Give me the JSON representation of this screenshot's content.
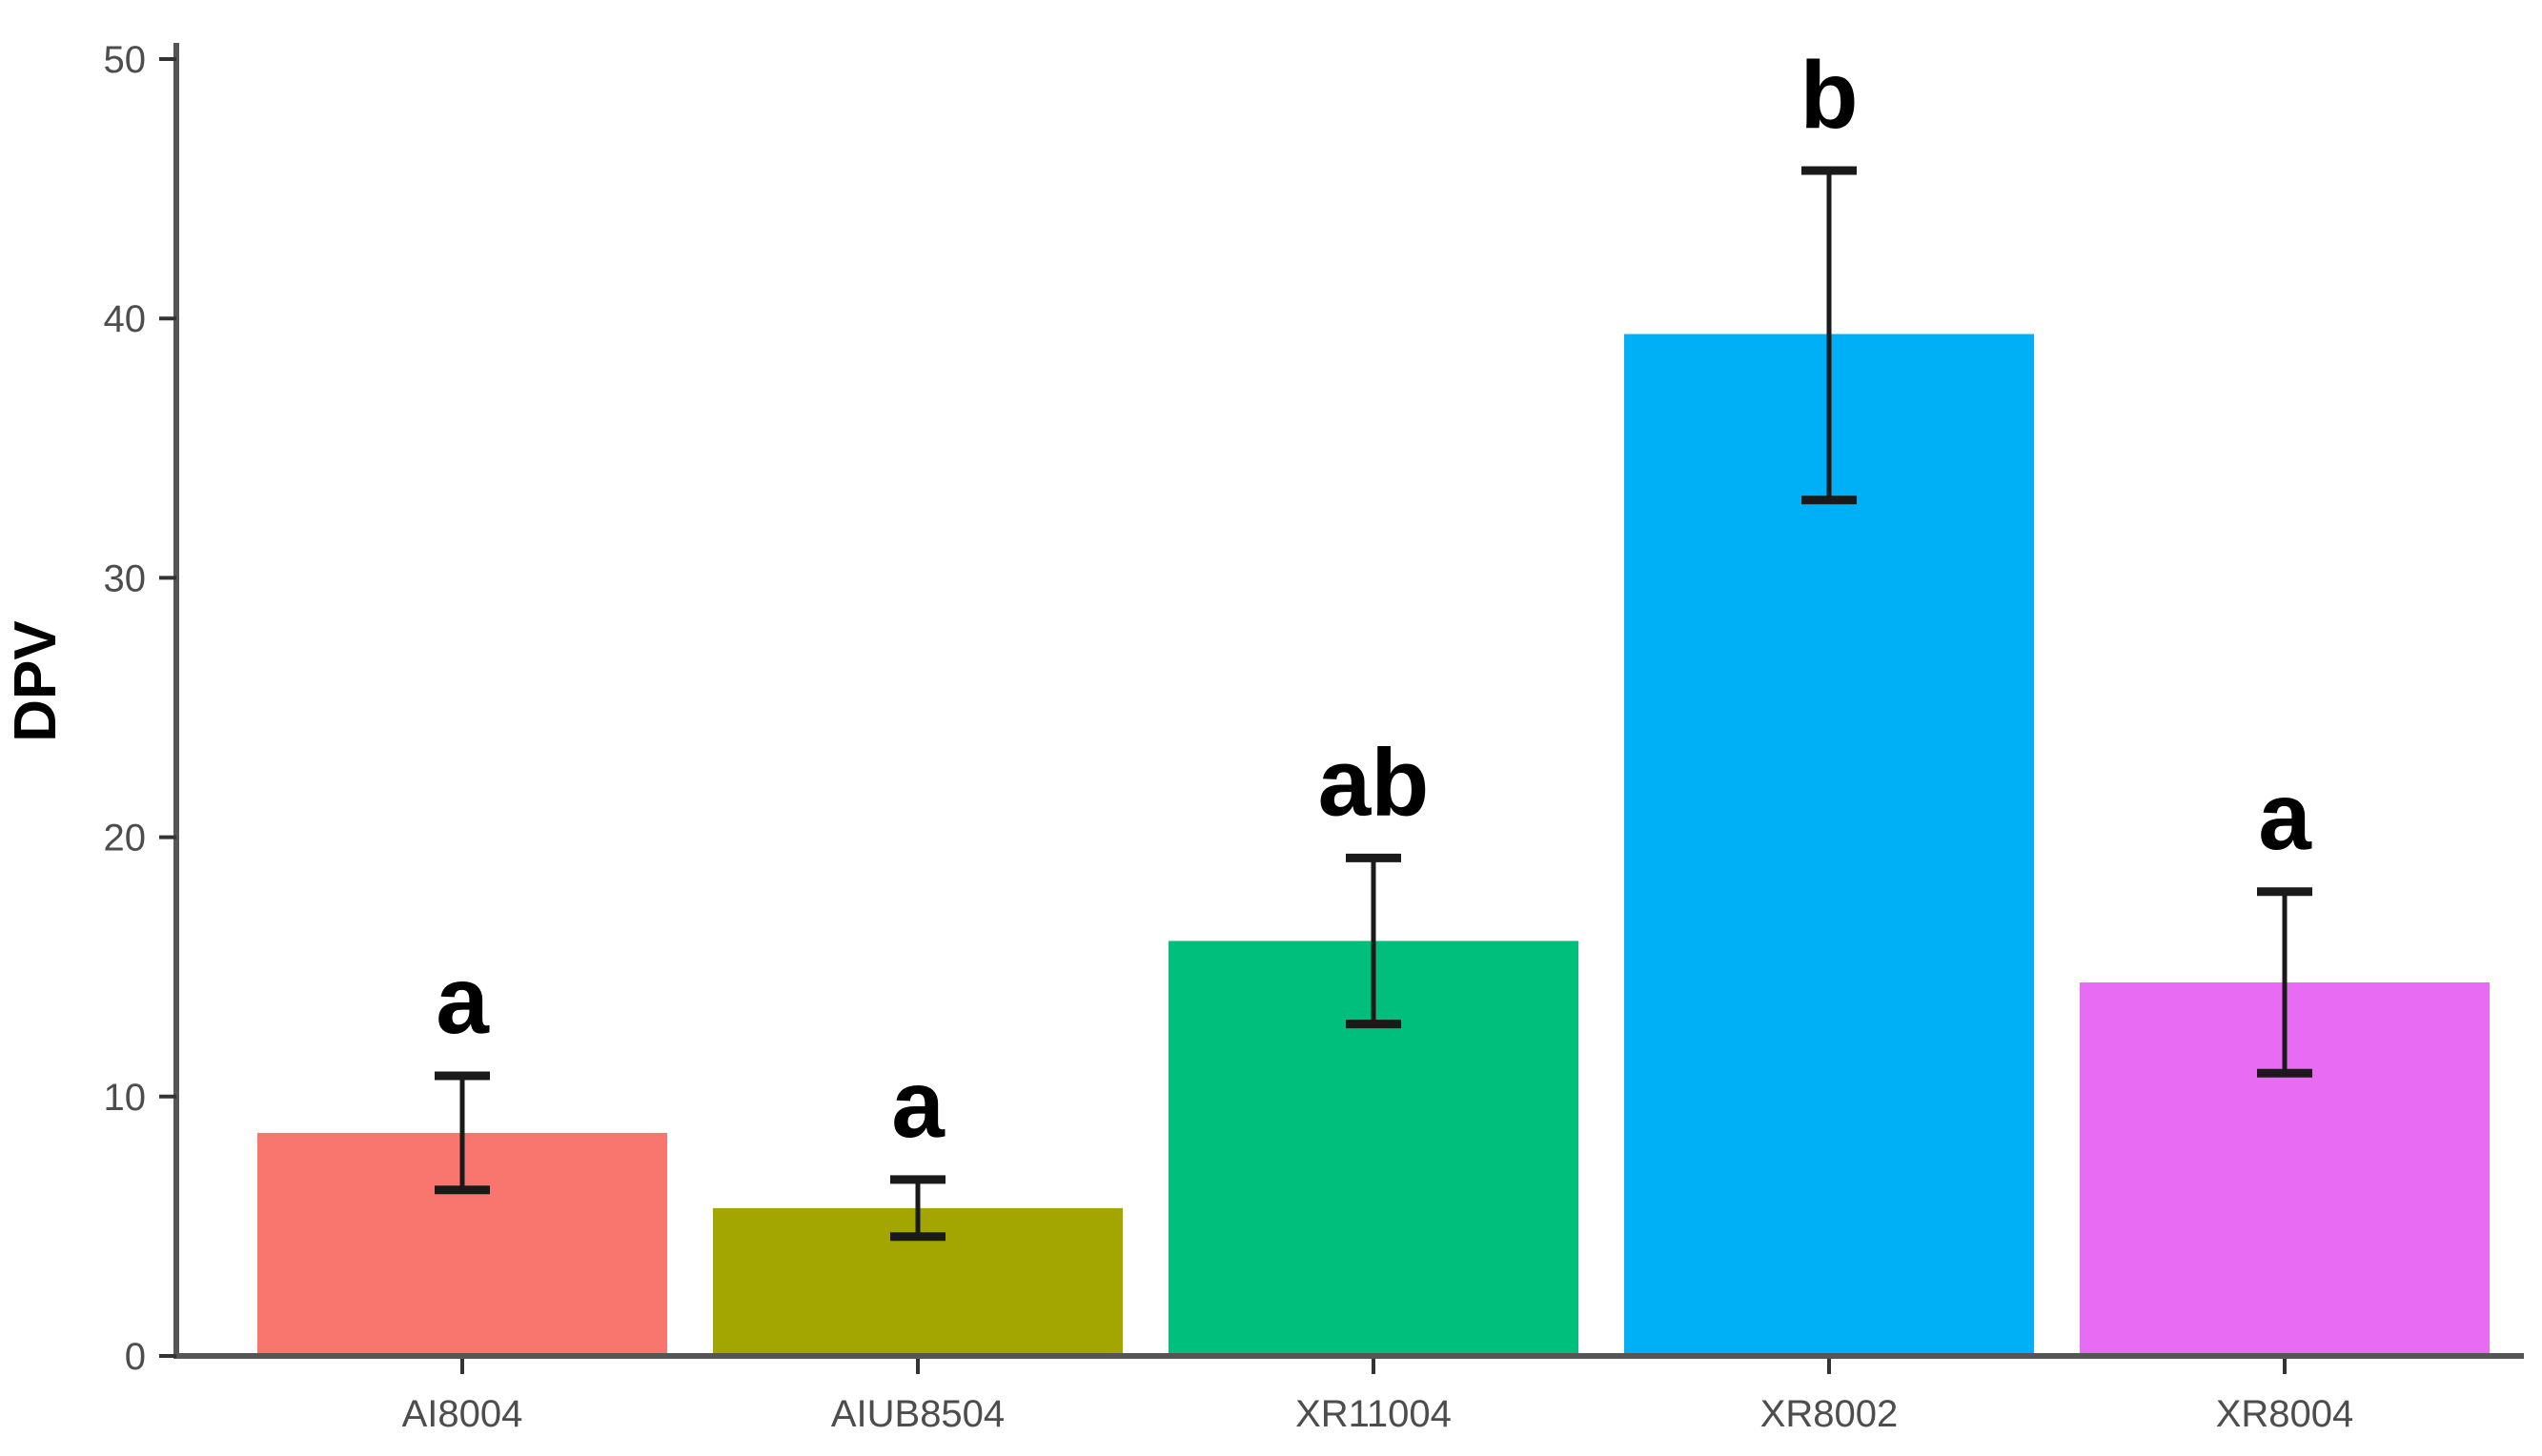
{
  "chart_data": {
    "type": "bar",
    "title": "",
    "xlabel": "",
    "ylabel": "DPV",
    "categories": [
      "AI8004",
      "AIUB8504",
      "XR11004",
      "XR8002",
      "XR8004"
    ],
    "values": [
      8.6,
      5.7,
      16.0,
      39.4,
      14.4
    ],
    "error_low": [
      6.4,
      4.6,
      12.8,
      33.0,
      10.9
    ],
    "error_high": [
      10.8,
      6.8,
      19.2,
      45.7,
      17.9
    ],
    "sig_letters": [
      "a",
      "a",
      "ab",
      "b",
      "a"
    ],
    "bar_colors": [
      "#F8766D",
      "#A3A500",
      "#00BF7D",
      "#00B0F6",
      "#E76BF3"
    ],
    "y_ticks": [
      "0",
      "10",
      "20",
      "30",
      "40",
      "50"
    ],
    "y_tick_values": [
      0,
      10,
      20,
      30,
      40,
      50
    ],
    "ylim": [
      0,
      50
    ],
    "grid": false,
    "legend": false,
    "background_color": "#ffffff",
    "axis_color": "#555555",
    "tick_color": "#333333",
    "tick_label_color": "#4d4d4d",
    "error_bar_color": "#1a1a1a",
    "letter_color": "#000000"
  }
}
